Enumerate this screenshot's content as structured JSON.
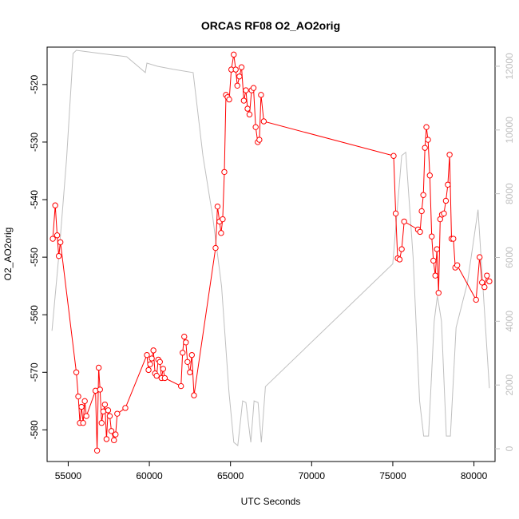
{
  "chart_data": {
    "type": "line",
    "title": "ORCAS RF08 O2_AO2orig",
    "xlabel": "UTC Seconds",
    "ylabel": "O2_AO2orig",
    "xlim": [
      53700,
      81300
    ],
    "ylim": [
      -585.5,
      -513.5
    ],
    "x_ticks": [
      55000,
      60000,
      65000,
      70000,
      75000,
      80000
    ],
    "y_ticks": [
      -580,
      -570,
      -560,
      -550,
      -540,
      -530,
      -520
    ],
    "y2lim": [
      -400,
      12600
    ],
    "y2_ticks": [
      0,
      2000,
      4000,
      6000,
      8000,
      10000,
      12000
    ],
    "grid": false,
    "series": [
      {
        "color": "#ff0000",
        "style": "line+points",
        "axis": "left",
        "points": [
          [
            54050,
            -546.8
          ],
          [
            54200,
            -541.0
          ],
          [
            54320,
            -546.2
          ],
          [
            54420,
            -549.8
          ],
          [
            54520,
            -547.4
          ],
          [
            55500,
            -570.0
          ],
          [
            55620,
            -574.2
          ],
          [
            55720,
            -578.8
          ],
          [
            55820,
            -576.0
          ],
          [
            55920,
            -578.8
          ],
          [
            56020,
            -575.0
          ],
          [
            56120,
            -577.6
          ],
          [
            56680,
            -573.2
          ],
          [
            56780,
            -583.6
          ],
          [
            56880,
            -569.2
          ],
          [
            56960,
            -573.0
          ],
          [
            57060,
            -578.8
          ],
          [
            57160,
            -576.8
          ],
          [
            57260,
            -575.6
          ],
          [
            57360,
            -581.6
          ],
          [
            57460,
            -576.6
          ],
          [
            57560,
            -577.6
          ],
          [
            57660,
            -580.2
          ],
          [
            57820,
            -581.8
          ],
          [
            57920,
            -580.8
          ],
          [
            58020,
            -577.2
          ],
          [
            58520,
            -576.2
          ],
          [
            59850,
            -567.0
          ],
          [
            59950,
            -569.6
          ],
          [
            60050,
            -568.6
          ],
          [
            60150,
            -567.6
          ],
          [
            60250,
            -566.2
          ],
          [
            60350,
            -570.2
          ],
          [
            60450,
            -570.6
          ],
          [
            60550,
            -567.8
          ],
          [
            60650,
            -568.2
          ],
          [
            60750,
            -571.0
          ],
          [
            60850,
            -569.4
          ],
          [
            60950,
            -571.0
          ],
          [
            61950,
            -572.4
          ],
          [
            62050,
            -566.6
          ],
          [
            62150,
            -563.8
          ],
          [
            62250,
            -564.8
          ],
          [
            62350,
            -568.2
          ],
          [
            62500,
            -570.0
          ],
          [
            62620,
            -567.0
          ],
          [
            62750,
            -574.0
          ],
          [
            64080,
            -548.4
          ],
          [
            64200,
            -541.2
          ],
          [
            64320,
            -543.8
          ],
          [
            64420,
            -545.8
          ],
          [
            64520,
            -543.4
          ],
          [
            64620,
            -535.2
          ],
          [
            64720,
            -521.8
          ],
          [
            64820,
            -522.2
          ],
          [
            64920,
            -522.6
          ],
          [
            65050,
            -517.4
          ],
          [
            65200,
            -514.8
          ],
          [
            65320,
            -517.4
          ],
          [
            65420,
            -520.2
          ],
          [
            65550,
            -518.6
          ],
          [
            65680,
            -517.0
          ],
          [
            65820,
            -522.8
          ],
          [
            65950,
            -521.0
          ],
          [
            66050,
            -524.2
          ],
          [
            66170,
            -525.2
          ],
          [
            66300,
            -521.0
          ],
          [
            66420,
            -520.6
          ],
          [
            66550,
            -527.4
          ],
          [
            66680,
            -530.0
          ],
          [
            66780,
            -529.6
          ],
          [
            66880,
            -521.8
          ],
          [
            67050,
            -526.4
          ],
          [
            75050,
            -532.4
          ],
          [
            75180,
            -542.4
          ],
          [
            75300,
            -550.2
          ],
          [
            75420,
            -550.4
          ],
          [
            75550,
            -548.6
          ],
          [
            75700,
            -543.8
          ],
          [
            76550,
            -545.2
          ],
          [
            76680,
            -545.6
          ],
          [
            76780,
            -542.0
          ],
          [
            76880,
            -539.2
          ],
          [
            76980,
            -531.0
          ],
          [
            77070,
            -527.4
          ],
          [
            77170,
            -529.6
          ],
          [
            77280,
            -535.8
          ],
          [
            77400,
            -546.4
          ],
          [
            77500,
            -550.6
          ],
          [
            77620,
            -553.2
          ],
          [
            77720,
            -548.6
          ],
          [
            77820,
            -556.2
          ],
          [
            77920,
            -543.4
          ],
          [
            78030,
            -542.6
          ],
          [
            78150,
            -542.4
          ],
          [
            78270,
            -540.2
          ],
          [
            78390,
            -537.4
          ],
          [
            78500,
            -532.2
          ],
          [
            78620,
            -546.8
          ],
          [
            78730,
            -546.8
          ],
          [
            78850,
            -551.8
          ],
          [
            78970,
            -551.4
          ],
          [
            80130,
            -557.4
          ],
          [
            80350,
            -550.0
          ],
          [
            80500,
            -554.4
          ],
          [
            80650,
            -555.2
          ],
          [
            80800,
            -553.2
          ],
          [
            80950,
            -554.2
          ]
        ]
      },
      {
        "color": "#bfbfbf",
        "style": "line",
        "axis": "right",
        "points": [
          [
            54000,
            3700
          ],
          [
            54450,
            6200
          ],
          [
            54900,
            9100
          ],
          [
            55300,
            12400
          ],
          [
            55500,
            12500
          ],
          [
            57000,
            12400
          ],
          [
            58600,
            12300
          ],
          [
            59300,
            12000
          ],
          [
            59750,
            11800
          ],
          [
            59850,
            12100
          ],
          [
            60500,
            12000
          ],
          [
            61500,
            11900
          ],
          [
            62700,
            11800
          ],
          [
            63300,
            9200
          ],
          [
            63900,
            7300
          ],
          [
            64450,
            5100
          ],
          [
            64900,
            1800
          ],
          [
            65200,
            200
          ],
          [
            65450,
            100
          ],
          [
            65750,
            1500
          ],
          [
            65950,
            1450
          ],
          [
            66250,
            200
          ],
          [
            66450,
            1500
          ],
          [
            66700,
            1450
          ],
          [
            66900,
            200
          ],
          [
            67150,
            1950
          ],
          [
            75000,
            5800
          ],
          [
            75550,
            9200
          ],
          [
            75800,
            9300
          ],
          [
            76250,
            6000
          ],
          [
            76650,
            1500
          ],
          [
            76900,
            400
          ],
          [
            77200,
            400
          ],
          [
            77550,
            4000
          ],
          [
            77750,
            4800
          ],
          [
            78000,
            4000
          ],
          [
            78300,
            400
          ],
          [
            78550,
            400
          ],
          [
            78900,
            3800
          ],
          [
            79600,
            5200
          ],
          [
            80250,
            7500
          ],
          [
            80950,
            1900
          ]
        ]
      }
    ]
  }
}
